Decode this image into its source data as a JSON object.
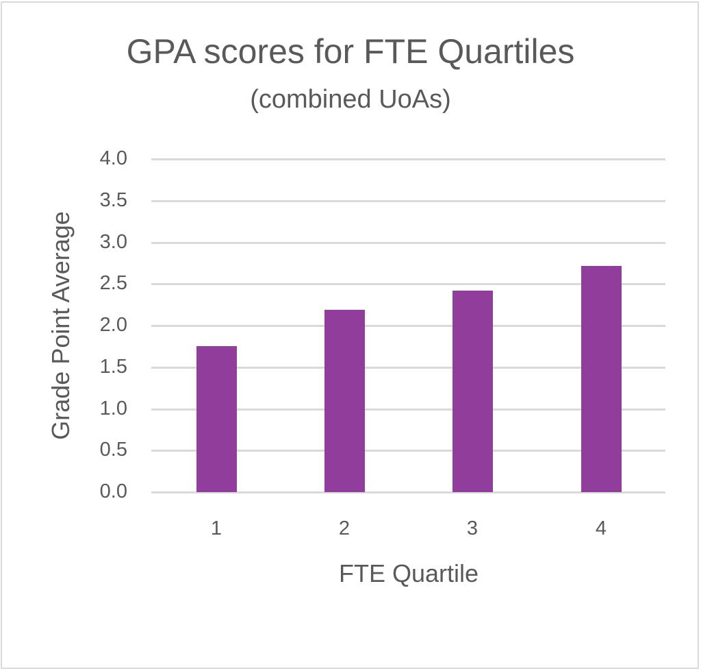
{
  "chart_data": {
    "type": "bar",
    "title": "GPA scores for FTE Quartiles",
    "subtitle": "(combined UoAs)",
    "xlabel": "FTE Quartile",
    "ylabel": "Grade Point Average",
    "categories": [
      "1",
      "2",
      "3",
      "4"
    ],
    "values": [
      1.75,
      2.19,
      2.42,
      2.72
    ],
    "ylim": [
      0,
      4.0
    ],
    "yticks": [
      "0.0",
      "0.5",
      "1.0",
      "1.5",
      "2.0",
      "2.5",
      "3.0",
      "3.5",
      "4.0"
    ],
    "grid": true,
    "legend": null,
    "bar_color": "#913d9b"
  }
}
